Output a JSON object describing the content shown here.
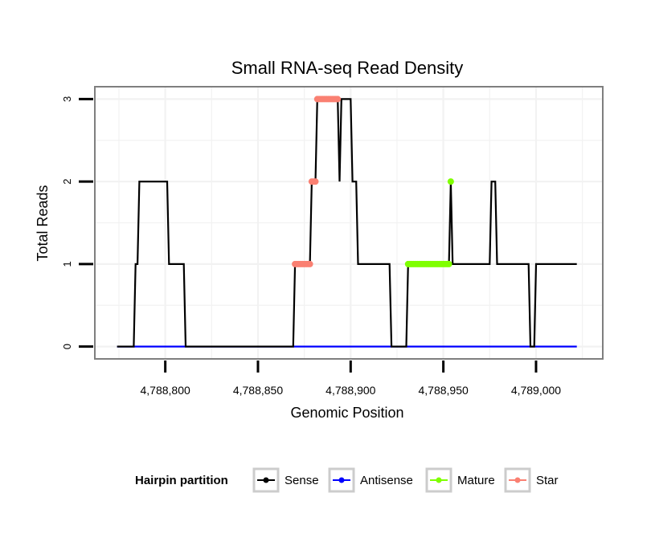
{
  "chart_data": {
    "type": "line",
    "title": "Small RNA-seq Read Density",
    "xlabel": "Genomic Position",
    "ylabel": "Total Reads",
    "xlim": [
      4788762,
      4789036
    ],
    "ylim": [
      -0.15,
      3.15
    ],
    "xticks": [
      4788800,
      4788850,
      4788900,
      4788950,
      4789000
    ],
    "xtick_labels": [
      "4,788,800",
      "4,788,850",
      "4,788,900",
      "4,788,950",
      "4,789,000"
    ],
    "yticks": [
      0,
      1,
      2,
      3
    ],
    "ytick_labels": [
      "0",
      "1",
      "2",
      "3"
    ],
    "grid": true,
    "legend": {
      "title": "Hairpin partition",
      "position": "bottom",
      "entries": [
        {
          "label": "Sense",
          "color": "#000000"
        },
        {
          "label": "Antisense",
          "color": "#0000ff"
        },
        {
          "label": "Mature",
          "color": "#7fff00"
        },
        {
          "label": "Star",
          "color": "#fa8072"
        }
      ]
    },
    "series": [
      {
        "name": "Sense",
        "color": "#000000",
        "style": "line",
        "points": [
          [
            4788774,
            0
          ],
          [
            4788783,
            0
          ],
          [
            4788784,
            1
          ],
          [
            4788785,
            1
          ],
          [
            4788786,
            2
          ],
          [
            4788801,
            2
          ],
          [
            4788802,
            1
          ],
          [
            4788810,
            1
          ],
          [
            4788811,
            0
          ],
          [
            4788869,
            0
          ],
          [
            4788870,
            1
          ],
          [
            4788878,
            1
          ],
          [
            4788879,
            2
          ],
          [
            4788881,
            2
          ],
          [
            4788882,
            3
          ],
          [
            4788893,
            3
          ],
          [
            4788894,
            2
          ],
          [
            4788895,
            3
          ],
          [
            4788900,
            3
          ],
          [
            4788901,
            2
          ],
          [
            4788903,
            2
          ],
          [
            4788904,
            1
          ],
          [
            4788921,
            1
          ],
          [
            4788922,
            0
          ],
          [
            4788930,
            0
          ],
          [
            4788931,
            1
          ],
          [
            4788953,
            1
          ],
          [
            4788954,
            2
          ],
          [
            4788955,
            1
          ],
          [
            4788975,
            1
          ],
          [
            4788976,
            2
          ],
          [
            4788978,
            2
          ],
          [
            4788979,
            1
          ],
          [
            4788996,
            1
          ],
          [
            4788997,
            0
          ],
          [
            4788999,
            0
          ],
          [
            4789000,
            1
          ],
          [
            4789022,
            1
          ]
        ]
      },
      {
        "name": "Antisense",
        "color": "#0000ff",
        "style": "line",
        "points": [
          [
            4788774,
            0
          ],
          [
            4789022,
            0
          ]
        ]
      },
      {
        "name": "Mature",
        "color": "#7fff00",
        "style": "points",
        "points": [
          [
            4788931,
            1
          ],
          [
            4788932,
            1
          ],
          [
            4788933,
            1
          ],
          [
            4788934,
            1
          ],
          [
            4788935,
            1
          ],
          [
            4788936,
            1
          ],
          [
            4788937,
            1
          ],
          [
            4788938,
            1
          ],
          [
            4788939,
            1
          ],
          [
            4788940,
            1
          ],
          [
            4788941,
            1
          ],
          [
            4788942,
            1
          ],
          [
            4788943,
            1
          ],
          [
            4788944,
            1
          ],
          [
            4788945,
            1
          ],
          [
            4788946,
            1
          ],
          [
            4788947,
            1
          ],
          [
            4788948,
            1
          ],
          [
            4788949,
            1
          ],
          [
            4788950,
            1
          ],
          [
            4788951,
            1
          ],
          [
            4788952,
            1
          ],
          [
            4788953,
            1
          ],
          [
            4788954,
            2
          ]
        ]
      },
      {
        "name": "Star",
        "color": "#fa8072",
        "style": "points",
        "points": [
          [
            4788870,
            1
          ],
          [
            4788871,
            1
          ],
          [
            4788872,
            1
          ],
          [
            4788873,
            1
          ],
          [
            4788874,
            1
          ],
          [
            4788875,
            1
          ],
          [
            4788876,
            1
          ],
          [
            4788877,
            1
          ],
          [
            4788878,
            1
          ],
          [
            4788879,
            2
          ],
          [
            4788880,
            2
          ],
          [
            4788881,
            2
          ],
          [
            4788882,
            3
          ],
          [
            4788883,
            3
          ],
          [
            4788884,
            3
          ],
          [
            4788885,
            3
          ],
          [
            4788886,
            3
          ],
          [
            4788887,
            3
          ],
          [
            4788888,
            3
          ],
          [
            4788889,
            3
          ],
          [
            4788890,
            3
          ],
          [
            4788891,
            3
          ],
          [
            4788892,
            3
          ],
          [
            4788893,
            3
          ]
        ]
      }
    ]
  }
}
